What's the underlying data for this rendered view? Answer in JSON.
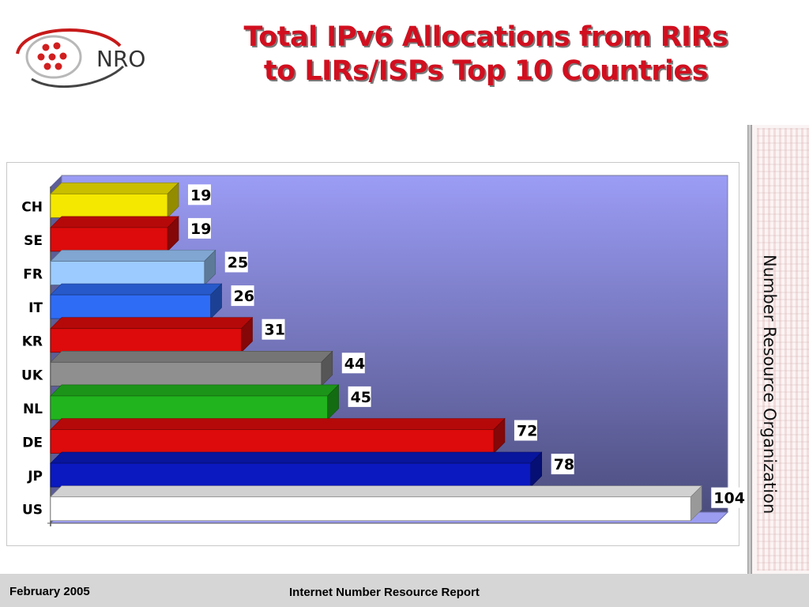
{
  "slide": {
    "title_line1": "Total IPv6 Allocations from RIRs",
    "title_line2": "to LIRs/ISPs Top 10 Countries",
    "logo_text": "NRO",
    "side_text": "Number Resource Organization",
    "footer_date": "February 2005",
    "footer_report": "Internet Number Resource Report"
  },
  "colors": {
    "title": "#d10f1f",
    "plot_top": "#9b9cf5",
    "plot_bottom": "#4c4d7e"
  },
  "chart_data": {
    "type": "bar",
    "orientation": "horizontal",
    "style": "3d",
    "categories": [
      "CH",
      "SE",
      "FR",
      "IT",
      "KR",
      "UK",
      "NL",
      "DE",
      "JP",
      "US"
    ],
    "values": [
      19,
      19,
      25,
      26,
      31,
      44,
      45,
      72,
      78,
      104
    ],
    "bar_colors": [
      "#f5e800",
      "#dd0b0b",
      "#9ccbff",
      "#2f6cf6",
      "#dd0b0b",
      "#8f8f8f",
      "#22b41e",
      "#dd0b0b",
      "#0a19c0",
      "#ffffff"
    ],
    "xlim": [
      0,
      110
    ],
    "data_labels": true,
    "legend": "none",
    "grid": false,
    "title": "",
    "xlabel": "",
    "ylabel": ""
  }
}
